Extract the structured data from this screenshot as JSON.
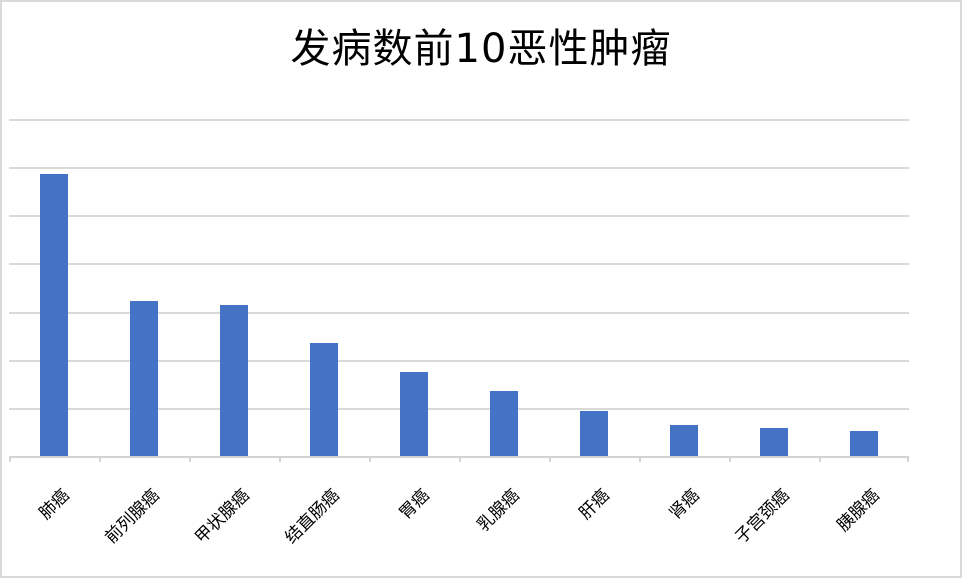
{
  "chart": {
    "title": "发病数前10恶性肿瘤",
    "colors": {
      "bar": "#4472C4",
      "gridline": "#D9D9D9",
      "axis_line": "#D3D3D3",
      "title_text": "#000000",
      "label_text": "#000000",
      "background": "#FFFFFF",
      "border": "#D9D9D9"
    }
  },
  "chart_data": {
    "type": "bar",
    "title": "发病数前10恶性肿瘤",
    "categories": [
      "肺癌",
      "前列腺癌",
      "甲状腺癌",
      "结直肠癌",
      "胃癌",
      "乳腺癌",
      "肝癌",
      "肾癌",
      "子宫颈癌",
      "胰腺癌"
    ],
    "values": [
      5.88,
      3.24,
      3.16,
      2.37,
      1.77,
      1.37,
      0.96,
      0.66,
      0.6,
      0.54
    ],
    "value_note": "y-axis has no visible numeric labels; values estimated in horizontal-gridline units (7 equal intervals from baseline to top gridline)",
    "xlabel": "",
    "ylabel": "",
    "ylim": [
      0,
      7
    ],
    "gridline_interval": 1,
    "grid": "horizontal",
    "legend": "none",
    "bar_color": "#4472C4",
    "x_label_rotation_deg": 45
  }
}
